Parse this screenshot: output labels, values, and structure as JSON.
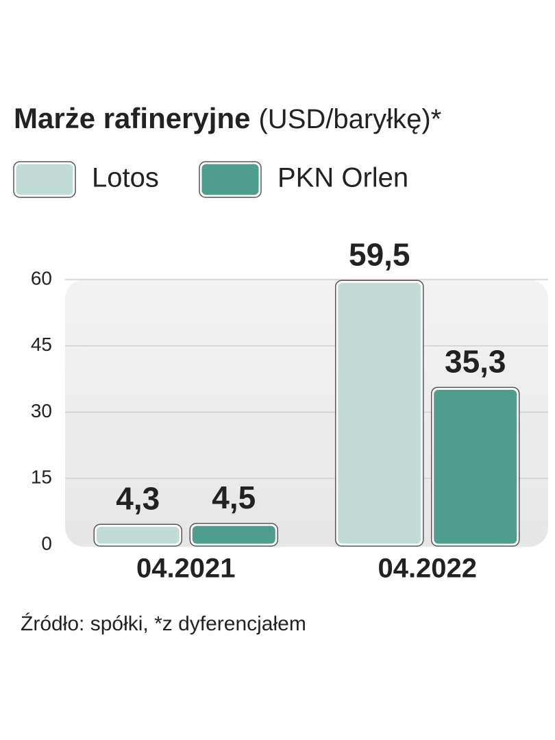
{
  "chart_data": {
    "type": "bar",
    "title": "Marże rafineryjne",
    "subtitle": "(USD/baryłkę)*",
    "categories": [
      "04.2021",
      "04.2022"
    ],
    "series": [
      {
        "name": "Lotos",
        "color": "#c1dcd7",
        "values": [
          4.3,
          59.5
        ],
        "value_labels": [
          "4,3",
          "59,5"
        ]
      },
      {
        "name": "PKN Orlen",
        "color": "#4e9e90",
        "values": [
          4.5,
          35.3
        ],
        "value_labels": [
          "4,5",
          "35,3"
        ]
      }
    ],
    "ylim": [
      0,
      60
    ],
    "yticks": [
      0,
      15,
      30,
      45,
      60
    ],
    "grid": true,
    "source": "Źródło: spółki,  *z dyferencjałem"
  }
}
